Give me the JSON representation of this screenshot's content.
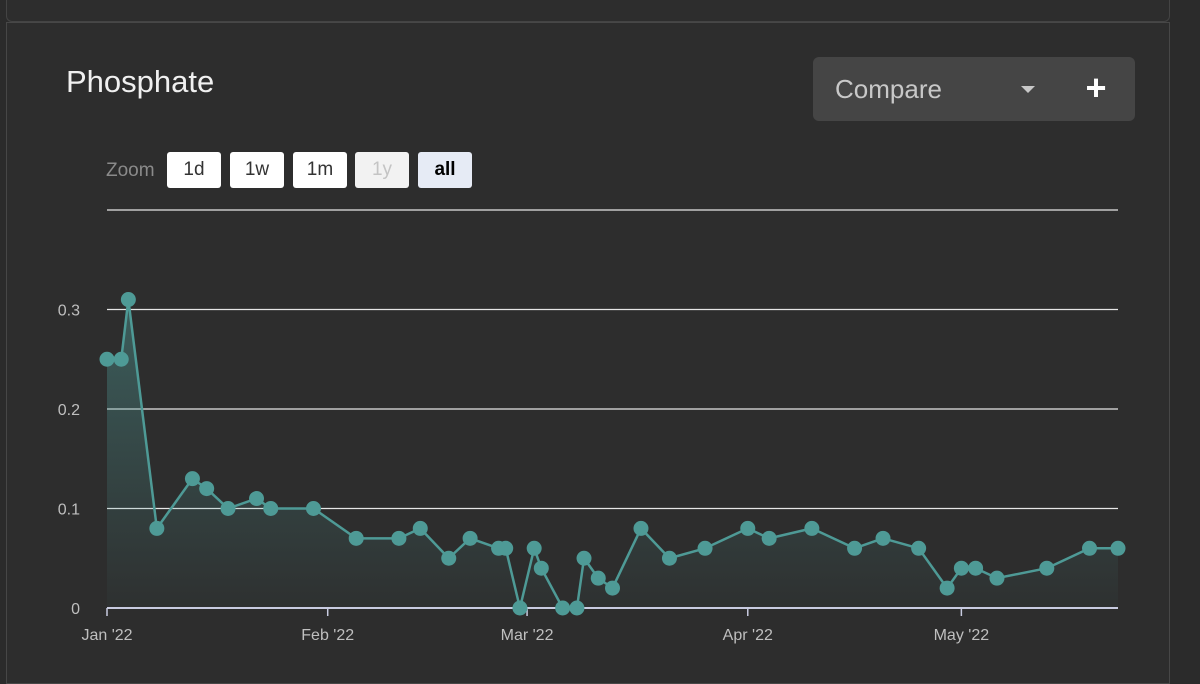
{
  "panel": {
    "title": "Phosphate",
    "compare": {
      "label": "Compare",
      "add_symbol": "+"
    },
    "zoom": {
      "label": "Zoom",
      "buttons": [
        {
          "label": "1d",
          "state": "normal"
        },
        {
          "label": "1w",
          "state": "normal"
        },
        {
          "label": "1m",
          "state": "normal"
        },
        {
          "label": "1y",
          "state": "disabled"
        },
        {
          "label": "all",
          "state": "active"
        }
      ]
    }
  },
  "colors": {
    "background": "#2b2b2b",
    "series": "#4e9a96",
    "grid": "#e6e6e6",
    "axis_text": "#bfbfbf"
  },
  "chart_data": {
    "type": "area",
    "title": "Phosphate",
    "xlabel": "",
    "ylabel": "",
    "x_range": [
      "2022-01-01",
      "2022-05-23"
    ],
    "ylim": [
      0,
      0.4
    ],
    "y_ticks": [
      {
        "value": 0,
        "label": "0"
      },
      {
        "value": 0.1,
        "label": "0.1"
      },
      {
        "value": 0.2,
        "label": "0.2"
      },
      {
        "value": 0.3,
        "label": "0.3"
      }
    ],
    "x_ticks": [
      {
        "date": "2022-01-01",
        "label": "Jan '22"
      },
      {
        "date": "2022-02-01",
        "label": "Feb '22"
      },
      {
        "date": "2022-03-01",
        "label": "Mar '22"
      },
      {
        "date": "2022-04-01",
        "label": "Apr '22"
      },
      {
        "date": "2022-05-01",
        "label": "May '22"
      }
    ],
    "grid": true,
    "series": [
      {
        "points": [
          [
            "2022-01-01",
            0.25
          ],
          [
            "2022-01-03",
            0.25
          ],
          [
            "2022-01-04",
            0.31
          ],
          [
            "2022-01-08",
            0.08
          ],
          [
            "2022-01-13",
            0.13
          ],
          [
            "2022-01-15",
            0.12
          ],
          [
            "2022-01-18",
            0.1
          ],
          [
            "2022-01-22",
            0.11
          ],
          [
            "2022-01-24",
            0.1
          ],
          [
            "2022-01-30",
            0.1
          ],
          [
            "2022-02-05",
            0.07
          ],
          [
            "2022-02-11",
            0.07
          ],
          [
            "2022-02-14",
            0.08
          ],
          [
            "2022-02-18",
            0.05
          ],
          [
            "2022-02-21",
            0.07
          ],
          [
            "2022-02-25",
            0.06
          ],
          [
            "2022-02-26",
            0.06
          ],
          [
            "2022-02-28",
            0.0
          ],
          [
            "2022-03-02",
            0.06
          ],
          [
            "2022-03-03",
            0.04
          ],
          [
            "2022-03-06",
            0.0
          ],
          [
            "2022-03-08",
            0.0
          ],
          [
            "2022-03-09",
            0.05
          ],
          [
            "2022-03-11",
            0.03
          ],
          [
            "2022-03-13",
            0.02
          ],
          [
            "2022-03-17",
            0.08
          ],
          [
            "2022-03-21",
            0.05
          ],
          [
            "2022-03-26",
            0.06
          ],
          [
            "2022-04-01",
            0.08
          ],
          [
            "2022-04-04",
            0.07
          ],
          [
            "2022-04-10",
            0.08
          ],
          [
            "2022-04-16",
            0.06
          ],
          [
            "2022-04-20",
            0.07
          ],
          [
            "2022-04-25",
            0.06
          ],
          [
            "2022-04-29",
            0.02
          ],
          [
            "2022-05-01",
            0.04
          ],
          [
            "2022-05-03",
            0.04
          ],
          [
            "2022-05-06",
            0.03
          ],
          [
            "2022-05-13",
            0.04
          ],
          [
            "2022-05-19",
            0.06
          ],
          [
            "2022-05-23",
            0.06
          ]
        ]
      }
    ]
  }
}
